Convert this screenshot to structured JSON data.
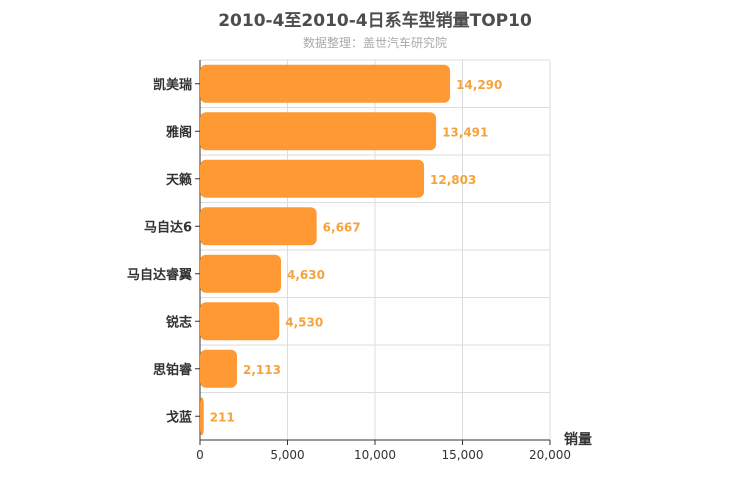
{
  "title": "2010-4至2010-4日系车型销量TOP10",
  "subtitle": "数据整理：盖世汽车研究院",
  "chart_data": {
    "type": "bar",
    "orientation": "horizontal",
    "categories": [
      "凯美瑞",
      "雅阁",
      "天籁",
      "马自达6",
      "马自达睿翼",
      "锐志",
      "思铂睿",
      "戈蓝"
    ],
    "values": [
      14290,
      13491,
      12803,
      6667,
      4630,
      4530,
      2113,
      211
    ],
    "value_labels": [
      "14,290",
      "13,491",
      "12,803",
      "6,667",
      "4,630",
      "4,530",
      "2,113",
      "211"
    ],
    "x_ticks": [
      0,
      5000,
      10000,
      15000,
      20000
    ],
    "x_tick_labels": [
      "0",
      "5,000",
      "10,000",
      "15,000",
      "20,000"
    ],
    "xlim": [
      0,
      20000
    ],
    "xlabel": "销量",
    "bar_color": "#ff9933",
    "grid": true
  }
}
